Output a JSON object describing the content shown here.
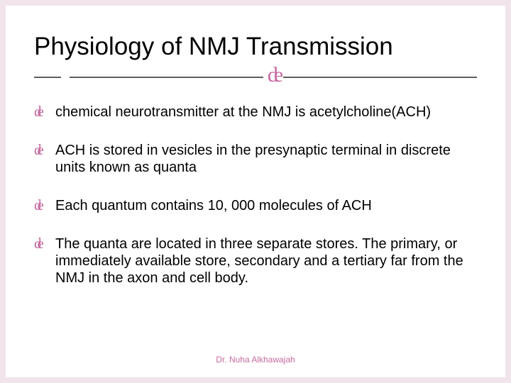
{
  "slide": {
    "background_color": "#f2e4eb",
    "card_color": "#ffffff",
    "accent_color": "#c66ba0",
    "divider_line_color": "#5e5e5e",
    "text_color": "#000000",
    "title": "Physiology of NMJ Transmission",
    "title_fontsize": 35,
    "body_fontsize": 20,
    "footer_fontsize": 12,
    "ornament_glyph": "de",
    "bullet_glyph": "de",
    "bullets": [
      "chemical neurotransmitter at the NMJ is acetylcholine(ACH)",
      "ACH is stored in vesicles in the presynaptic terminal in discrete units known as quanta",
      "Each quantum contains 10, 000 molecules of ACH",
      "The quanta are located in three separate stores. The primary, or immediately available store, secondary and a tertiary far from the NMJ in the axon and cell body."
    ],
    "footer": "Dr. Nuha Alkhawajah"
  }
}
